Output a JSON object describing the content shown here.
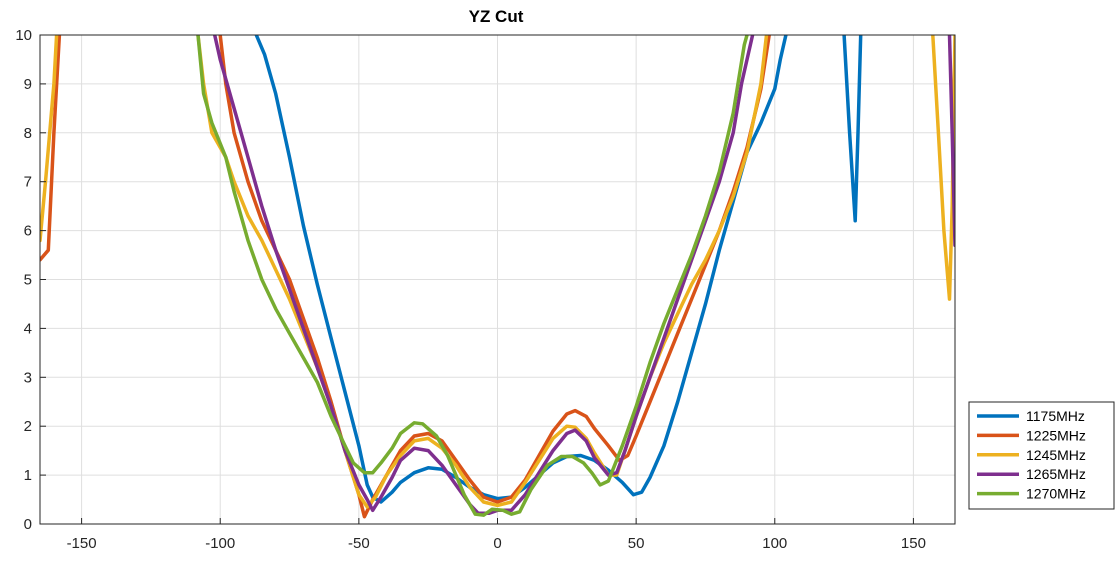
{
  "chart_data": {
    "type": "line",
    "title": "YZ Cut",
    "xlabel": "",
    "ylabel": "",
    "xlim": [
      -165,
      165
    ],
    "ylim": [
      0,
      10
    ],
    "xticks": [
      -150,
      -100,
      -50,
      0,
      50,
      100,
      150
    ],
    "yticks": [
      0,
      1,
      2,
      3,
      4,
      5,
      6,
      7,
      8,
      9,
      10
    ],
    "grid": true,
    "legend_position": "outside-bottom-right",
    "series": [
      {
        "name": "1175MHz",
        "color": "#0072BD",
        "segments": [
          [
            [
              -87,
              10
            ],
            [
              -84,
              9.6
            ],
            [
              -80,
              8.8
            ],
            [
              -75,
              7.5
            ],
            [
              -70,
              6.1
            ],
            [
              -65,
              4.9
            ],
            [
              -60,
              3.8
            ],
            [
              -55,
              2.7
            ],
            [
              -50,
              1.6
            ],
            [
              -47,
              0.8
            ],
            [
              -45,
              0.55
            ],
            [
              -42,
              0.45
            ],
            [
              -38,
              0.65
            ],
            [
              -35,
              0.85
            ],
            [
              -30,
              1.05
            ],
            [
              -25,
              1.15
            ],
            [
              -20,
              1.12
            ],
            [
              -15,
              0.95
            ],
            [
              -10,
              0.75
            ],
            [
              -5,
              0.6
            ],
            [
              0,
              0.52
            ],
            [
              5,
              0.55
            ],
            [
              10,
              0.75
            ],
            [
              15,
              1.0
            ],
            [
              20,
              1.25
            ],
            [
              25,
              1.38
            ],
            [
              30,
              1.4
            ],
            [
              35,
              1.3
            ],
            [
              40,
              1.1
            ],
            [
              45,
              0.85
            ],
            [
              49,
              0.6
            ],
            [
              52,
              0.65
            ],
            [
              55,
              0.95
            ],
            [
              60,
              1.6
            ],
            [
              65,
              2.5
            ],
            [
              70,
              3.5
            ],
            [
              75,
              4.5
            ],
            [
              80,
              5.6
            ],
            [
              85,
              6.6
            ],
            [
              90,
              7.6
            ],
            [
              95,
              8.2
            ],
            [
              100,
              8.9
            ],
            [
              102,
              9.5
            ],
            [
              104,
              10
            ]
          ],
          [
            [
              125,
              10
            ],
            [
              127,
              8
            ],
            [
              129,
              6.2
            ],
            [
              130,
              8
            ],
            [
              131,
              10
            ]
          ]
        ]
      },
      {
        "name": "1225MHz",
        "color": "#D95319",
        "segments": [
          [
            [
              -165,
              5.4
            ],
            [
              -162,
              5.6
            ],
            [
              -160,
              8
            ],
            [
              -158,
              10
            ]
          ],
          [
            [
              -100,
              10
            ],
            [
              -98,
              9
            ],
            [
              -95,
              8
            ],
            [
              -90,
              7
            ],
            [
              -85,
              6.2
            ],
            [
              -80,
              5.6
            ],
            [
              -75,
              5.0
            ],
            [
              -70,
              4.2
            ],
            [
              -65,
              3.4
            ],
            [
              -60,
              2.5
            ],
            [
              -55,
              1.5
            ],
            [
              -50,
              0.6
            ],
            [
              -48,
              0.15
            ],
            [
              -45,
              0.5
            ],
            [
              -40,
              1.0
            ],
            [
              -35,
              1.5
            ],
            [
              -30,
              1.8
            ],
            [
              -25,
              1.85
            ],
            [
              -20,
              1.7
            ],
            [
              -15,
              1.3
            ],
            [
              -10,
              0.9
            ],
            [
              -5,
              0.55
            ],
            [
              0,
              0.45
            ],
            [
              5,
              0.55
            ],
            [
              10,
              0.9
            ],
            [
              15,
              1.4
            ],
            [
              20,
              1.9
            ],
            [
              25,
              2.25
            ],
            [
              28,
              2.32
            ],
            [
              32,
              2.2
            ],
            [
              35,
              1.95
            ],
            [
              40,
              1.6
            ],
            [
              44,
              1.3
            ],
            [
              47,
              1.4
            ],
            [
              50,
              1.8
            ],
            [
              55,
              2.5
            ],
            [
              60,
              3.2
            ],
            [
              65,
              3.9
            ],
            [
              70,
              4.6
            ],
            [
              75,
              5.3
            ],
            [
              80,
              6.0
            ],
            [
              85,
              6.8
            ],
            [
              90,
              7.7
            ],
            [
              95,
              8.9
            ],
            [
              98,
              10
            ]
          ]
        ]
      },
      {
        "name": "1245MHz",
        "color": "#EDB120",
        "segments": [
          [
            [
              -165,
              5.8
            ],
            [
              -163,
              7
            ],
            [
              -160,
              9
            ],
            [
              -159,
              10
            ]
          ],
          [
            [
              -108,
              10
            ],
            [
              -106,
              9
            ],
            [
              -103,
              8
            ],
            [
              -98,
              7.5
            ],
            [
              -95,
              7.0
            ],
            [
              -90,
              6.3
            ],
            [
              -85,
              5.8
            ],
            [
              -80,
              5.2
            ],
            [
              -75,
              4.6
            ],
            [
              -70,
              3.9
            ],
            [
              -65,
              3.2
            ],
            [
              -60,
              2.4
            ],
            [
              -55,
              1.5
            ],
            [
              -50,
              0.6
            ],
            [
              -47,
              0.35
            ],
            [
              -44,
              0.55
            ],
            [
              -40,
              1.0
            ],
            [
              -35,
              1.4
            ],
            [
              -30,
              1.7
            ],
            [
              -25,
              1.75
            ],
            [
              -20,
              1.55
            ],
            [
              -15,
              1.2
            ],
            [
              -10,
              0.75
            ],
            [
              -5,
              0.45
            ],
            [
              0,
              0.38
            ],
            [
              5,
              0.45
            ],
            [
              10,
              0.85
            ],
            [
              15,
              1.3
            ],
            [
              20,
              1.75
            ],
            [
              25,
              2.0
            ],
            [
              28,
              1.98
            ],
            [
              32,
              1.75
            ],
            [
              35,
              1.45
            ],
            [
              40,
              1.0
            ],
            [
              43,
              1.0
            ],
            [
              46,
              1.5
            ],
            [
              50,
              2.2
            ],
            [
              55,
              3.0
            ],
            [
              60,
              3.7
            ],
            [
              65,
              4.3
            ],
            [
              70,
              4.9
            ],
            [
              75,
              5.4
            ],
            [
              80,
              6.0
            ],
            [
              85,
              6.7
            ],
            [
              90,
              7.6
            ],
            [
              95,
              9.0
            ],
            [
              97,
              10
            ]
          ],
          [
            [
              157,
              10
            ],
            [
              159,
              8
            ],
            [
              161,
              6
            ],
            [
              163,
              4.6
            ],
            [
              164,
              6.5
            ],
            [
              165,
              10
            ]
          ]
        ]
      },
      {
        "name": "1265MHz",
        "color": "#7E2F8E",
        "segments": [
          [
            [
              -102,
              10
            ],
            [
              -100,
              9.5
            ],
            [
              -95,
              8.5
            ],
            [
              -90,
              7.5
            ],
            [
              -85,
              6.5
            ],
            [
              -80,
              5.6
            ],
            [
              -75,
              4.8
            ],
            [
              -70,
              4.0
            ],
            [
              -65,
              3.2
            ],
            [
              -60,
              2.4
            ],
            [
              -55,
              1.5
            ],
            [
              -50,
              0.8
            ],
            [
              -47,
              0.5
            ],
            [
              -45,
              0.28
            ],
            [
              -42,
              0.55
            ],
            [
              -38,
              0.95
            ],
            [
              -35,
              1.3
            ],
            [
              -30,
              1.55
            ],
            [
              -25,
              1.5
            ],
            [
              -20,
              1.2
            ],
            [
              -15,
              0.8
            ],
            [
              -10,
              0.4
            ],
            [
              -7,
              0.22
            ],
            [
              -3,
              0.22
            ],
            [
              0,
              0.28
            ],
            [
              5,
              0.28
            ],
            [
              10,
              0.6
            ],
            [
              15,
              1.05
            ],
            [
              20,
              1.5
            ],
            [
              25,
              1.85
            ],
            [
              28,
              1.92
            ],
            [
              32,
              1.7
            ],
            [
              35,
              1.35
            ],
            [
              40,
              1.0
            ],
            [
              43,
              1.05
            ],
            [
              46,
              1.5
            ],
            [
              50,
              2.2
            ],
            [
              55,
              3.0
            ],
            [
              60,
              3.8
            ],
            [
              65,
              4.6
            ],
            [
              70,
              5.4
            ],
            [
              75,
              6.2
            ],
            [
              80,
              7.0
            ],
            [
              85,
              8.0
            ],
            [
              88,
              9.0
            ],
            [
              92,
              10
            ]
          ],
          [
            [
              163,
              10
            ],
            [
              164,
              8
            ],
            [
              165,
              5.7
            ]
          ]
        ]
      },
      {
        "name": "1270MHz",
        "color": "#77AC30",
        "segments": [
          [
            [
              -108,
              10
            ],
            [
              -106,
              8.8
            ],
            [
              -103,
              8.2
            ],
            [
              -98,
              7.5
            ],
            [
              -95,
              6.8
            ],
            [
              -90,
              5.8
            ],
            [
              -85,
              5.0
            ],
            [
              -80,
              4.4
            ],
            [
              -75,
              3.9
            ],
            [
              -70,
              3.4
            ],
            [
              -65,
              2.9
            ],
            [
              -60,
              2.2
            ],
            [
              -55,
              1.6
            ],
            [
              -52,
              1.25
            ],
            [
              -48,
              1.05
            ],
            [
              -45,
              1.05
            ],
            [
              -42,
              1.25
            ],
            [
              -38,
              1.55
            ],
            [
              -35,
              1.85
            ],
            [
              -30,
              2.07
            ],
            [
              -27,
              2.05
            ],
            [
              -22,
              1.8
            ],
            [
              -18,
              1.4
            ],
            [
              -15,
              1.0
            ],
            [
              -12,
              0.6
            ],
            [
              -8,
              0.2
            ],
            [
              -5,
              0.18
            ],
            [
              -2,
              0.3
            ],
            [
              2,
              0.28
            ],
            [
              5,
              0.2
            ],
            [
              8,
              0.25
            ],
            [
              12,
              0.7
            ],
            [
              18,
              1.2
            ],
            [
              23,
              1.38
            ],
            [
              27,
              1.38
            ],
            [
              31,
              1.25
            ],
            [
              34,
              1.05
            ],
            [
              37,
              0.8
            ],
            [
              40,
              0.88
            ],
            [
              45,
              1.6
            ],
            [
              50,
              2.4
            ],
            [
              55,
              3.3
            ],
            [
              60,
              4.1
            ],
            [
              65,
              4.8
            ],
            [
              70,
              5.5
            ],
            [
              75,
              6.3
            ],
            [
              80,
              7.2
            ],
            [
              85,
              8.4
            ],
            [
              89,
              9.8
            ],
            [
              90,
              10
            ]
          ]
        ]
      }
    ]
  }
}
